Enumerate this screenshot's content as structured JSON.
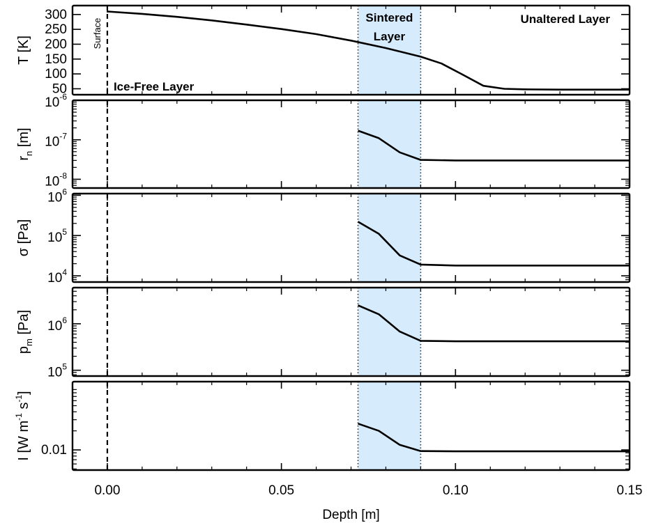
{
  "chart_data": {
    "type": "line",
    "xlabel": "Depth [m]",
    "xlim": [
      -0.01,
      0.15
    ],
    "xticks": [
      "0.00",
      "0.05",
      "0.10",
      "0.15"
    ],
    "xtick_values": [
      0.0,
      0.05,
      0.1,
      0.15
    ],
    "surface_depth": 0.0,
    "sintered_range": [
      0.072,
      0.09
    ],
    "sinter_fill": "#d6ebfb",
    "annotations": {
      "surface": "Surface",
      "ice_free": "Ice-Free Layer",
      "sintered_line1": "Sintered",
      "sintered_line2": "Layer",
      "unaltered": "Unaltered Layer"
    },
    "panels": [
      {
        "id": "temperature",
        "ylabel": "T [K]",
        "scale": "linear",
        "ylim": [
          30,
          330
        ],
        "yticks": [
          {
            "value": 50,
            "label": "50"
          },
          {
            "value": 100,
            "label": "100"
          },
          {
            "value": 150,
            "label": "150"
          },
          {
            "value": 200,
            "label": "200"
          },
          {
            "value": 250,
            "label": "250"
          },
          {
            "value": 300,
            "label": "300"
          }
        ],
        "x": [
          0.0,
          0.01,
          0.02,
          0.03,
          0.04,
          0.05,
          0.06,
          0.07,
          0.08,
          0.09,
          0.096,
          0.102,
          0.108,
          0.114,
          0.12,
          0.13,
          0.14,
          0.15
        ],
        "y": [
          310,
          302,
          292,
          280,
          266,
          251,
          234,
          212,
          187,
          158,
          135,
          98,
          60,
          50,
          48,
          47,
          47,
          47
        ]
      },
      {
        "id": "neck-radius",
        "ylabel": "r",
        "ylabel_sub": "n",
        "ylabel_unit": " [m]",
        "scale": "log",
        "ylim": [
          6e-09,
          1e-06
        ],
        "yticks": [
          {
            "value": 1e-08,
            "base": "10",
            "exp": "-8"
          },
          {
            "value": 1e-07,
            "base": "10",
            "exp": "-7"
          },
          {
            "value": 1e-06,
            "base": "10",
            "exp": "-6"
          }
        ],
        "x": [
          0.072,
          0.078,
          0.084,
          0.09,
          0.1,
          0.12,
          0.15
        ],
        "y": [
          1.7e-07,
          1.1e-07,
          4.8e-08,
          3.1e-08,
          3e-08,
          3e-08,
          3e-08
        ]
      },
      {
        "id": "stress",
        "ylabel": "σ [Pa]",
        "scale": "log",
        "ylim": [
          7000.0,
          1100000.0
        ],
        "yticks": [
          {
            "value": 10000.0,
            "base": "10",
            "exp": "4"
          },
          {
            "value": 100000.0,
            "base": "10",
            "exp": "5"
          },
          {
            "value": 1000000.0,
            "base": "10",
            "exp": "6"
          }
        ],
        "x": [
          0.072,
          0.078,
          0.084,
          0.09,
          0.1,
          0.12,
          0.15
        ],
        "y": [
          220000.0,
          110000.0,
          32000.0,
          19000.0,
          18000.0,
          18000.0,
          18000.0
        ]
      },
      {
        "id": "modulus",
        "ylabel": "p",
        "ylabel_sub": "m",
        "ylabel_unit": " [Pa]",
        "scale": "log",
        "ylim": [
          75000.0,
          6000000.0
        ],
        "yticks": [
          {
            "value": 100000.0,
            "base": "10",
            "exp": "5"
          },
          {
            "value": 1000000.0,
            "base": "10",
            "exp": "6"
          }
        ],
        "x": [
          0.072,
          0.078,
          0.084,
          0.09,
          0.1,
          0.12,
          0.15
        ],
        "y": [
          2500000.0,
          1600000.0,
          680000.0,
          430000.0,
          420000.0,
          420000.0,
          420000.0
        ]
      },
      {
        "id": "conductivity",
        "ylabel": "I [W m",
        "ylabel_exp1": "-1",
        "ylabel_mid": " s",
        "ylabel_exp2": "-1",
        "ylabel_end": "]",
        "scale": "log",
        "ylim": [
          0.0048,
          0.12
        ],
        "yticks": [
          {
            "value": 0.01,
            "label": "0.01"
          }
        ],
        "x": [
          0.072,
          0.078,
          0.084,
          0.09,
          0.1,
          0.12,
          0.15
        ],
        "y": [
          0.026,
          0.02,
          0.012,
          0.0096,
          0.0095,
          0.0095,
          0.0095
        ]
      }
    ]
  }
}
